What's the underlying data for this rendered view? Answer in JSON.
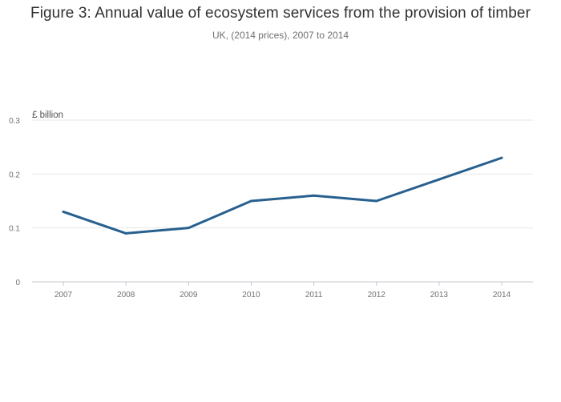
{
  "chart_data": {
    "type": "line",
    "title": "Figure 3: Annual value of ecosystem services from the provision of timber",
    "subtitle": "UK, (2014 prices), 2007 to 2014",
    "ylabel": "£ billion",
    "xlabel": "",
    "categories": [
      "2007",
      "2008",
      "2009",
      "2010",
      "2011",
      "2012",
      "2013",
      "2014"
    ],
    "series": [
      {
        "name": "Provision of timber",
        "values": [
          0.13,
          0.09,
          0.1,
          0.15,
          0.16,
          0.15,
          0.19,
          0.23
        ]
      }
    ],
    "ylim": [
      0,
      0.3
    ],
    "yticks": [
      0,
      0.1,
      0.2,
      0.3
    ],
    "ytick_labels": [
      "0",
      "0.1",
      "0.2",
      "0.3"
    ],
    "grid": true,
    "colors": {
      "line": "#27608f",
      "grid": "#e6e6e6",
      "axis": "#c8c8d2",
      "tick_text": "#707071"
    }
  }
}
